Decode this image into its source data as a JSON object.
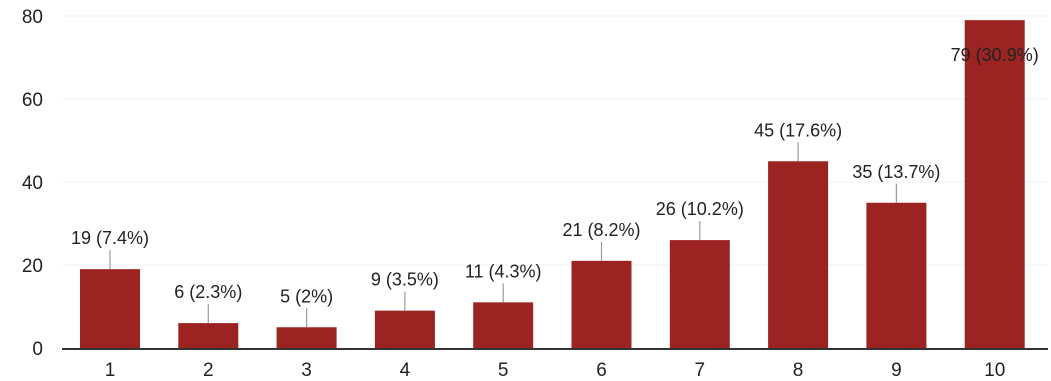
{
  "chart_data": {
    "type": "bar",
    "title": "",
    "xlabel": "",
    "ylabel": "",
    "categories": [
      "1",
      "2",
      "3",
      "4",
      "5",
      "6",
      "7",
      "8",
      "9",
      "10"
    ],
    "values": [
      19,
      6,
      5,
      9,
      11,
      21,
      26,
      45,
      35,
      79
    ],
    "data_labels": [
      "19 (7.4%)",
      "6 (2.3%)",
      "5 (2%)",
      "9 (3.5%)",
      "11 (4.3%)",
      "21 (8.2%)",
      "26 (10.2%)",
      "45 (17.6%)",
      "35 (13.7%)",
      "79 (30.9%)"
    ],
    "ylim": [
      0,
      80
    ],
    "yticks": [
      "0",
      "20",
      "40",
      "60",
      "80"
    ],
    "grid": true,
    "legend": "none",
    "colors": {
      "bar": "#9b2423",
      "axis": "#333333",
      "leader": "#9a9a9a"
    }
  }
}
